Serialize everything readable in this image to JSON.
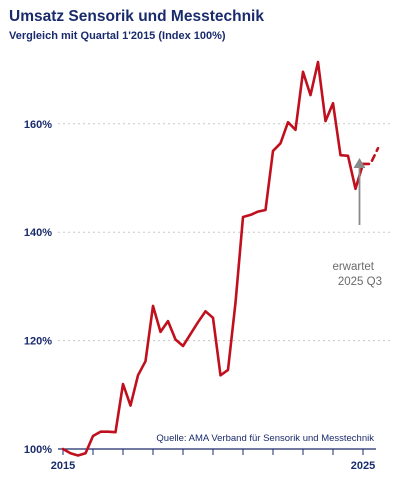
{
  "title": "Umsatz Sensorik und Messtechnik",
  "subtitle": "Vergleich mit Quartal 1'2015 (Index 100%)",
  "source": "Quelle: AMA Verband für Sensorik und Messtechnik",
  "annotation": {
    "line1": "erwartet",
    "line2": "2025 Q3"
  },
  "colors": {
    "line": "#c0101e",
    "text": "#1a2b6b",
    "grid": "#c8c8c8",
    "arrow": "#8a8a8a"
  },
  "chart_data": {
    "type": "line",
    "title": "Umsatz Sensorik und Messtechnik",
    "subtitle": "Vergleich mit Quartal 1'2015 (Index 100%)",
    "xlabel": "",
    "ylabel": "",
    "y_tick_labels": [
      "100%",
      "120%",
      "140%",
      "160%"
    ],
    "y_ticks": [
      100,
      120,
      140,
      160
    ],
    "x_tick_labels": [
      "2015",
      "2025"
    ],
    "x_ticks": [
      2015.0,
      2025.0
    ],
    "ylim": [
      100,
      175
    ],
    "xlim": [
      2015.0,
      2025.05
    ],
    "grid": "horizontal-dotted",
    "series": [
      {
        "x": [
          2015.0,
          2015.25,
          2015.5,
          2015.75,
          2016.0,
          2016.25,
          2016.5,
          2016.75,
          2017.0,
          2017.25,
          2017.5,
          2017.75,
          2018.0,
          2018.25,
          2018.5,
          2018.75,
          2019.0,
          2019.25,
          2019.5,
          2019.75,
          2020.0,
          2020.25,
          2020.5,
          2020.75,
          2021.0,
          2021.25,
          2021.5,
          2021.75,
          2022.0,
          2022.25,
          2022.5,
          2022.75,
          2023.0,
          2023.25,
          2023.5,
          2023.75,
          2024.0,
          2024.25,
          2024.5,
          2024.75,
          2025.0
        ],
        "y": [
          100.0,
          99.2,
          98.8,
          99.2,
          102.4,
          103.2,
          103.2,
          103.1,
          112.0,
          108.0,
          113.6,
          116.2,
          126.4,
          121.6,
          123.6,
          120.2,
          119.0,
          121.2,
          123.4,
          125.4,
          124.2,
          113.6,
          114.6,
          127.0,
          142.8,
          143.2,
          143.8,
          144.1,
          155.0,
          156.4,
          160.3,
          158.9,
          169.6,
          165.3,
          171.4,
          160.5,
          163.8,
          154.2,
          154.1,
          148.0,
          152.6
        ]
      },
      {
        "name": "erwartet",
        "style": "dashed",
        "x": [
          2025.0,
          2025.25,
          2025.5
        ],
        "y": [
          152.6,
          152.6,
          155.5
        ]
      }
    ]
  }
}
